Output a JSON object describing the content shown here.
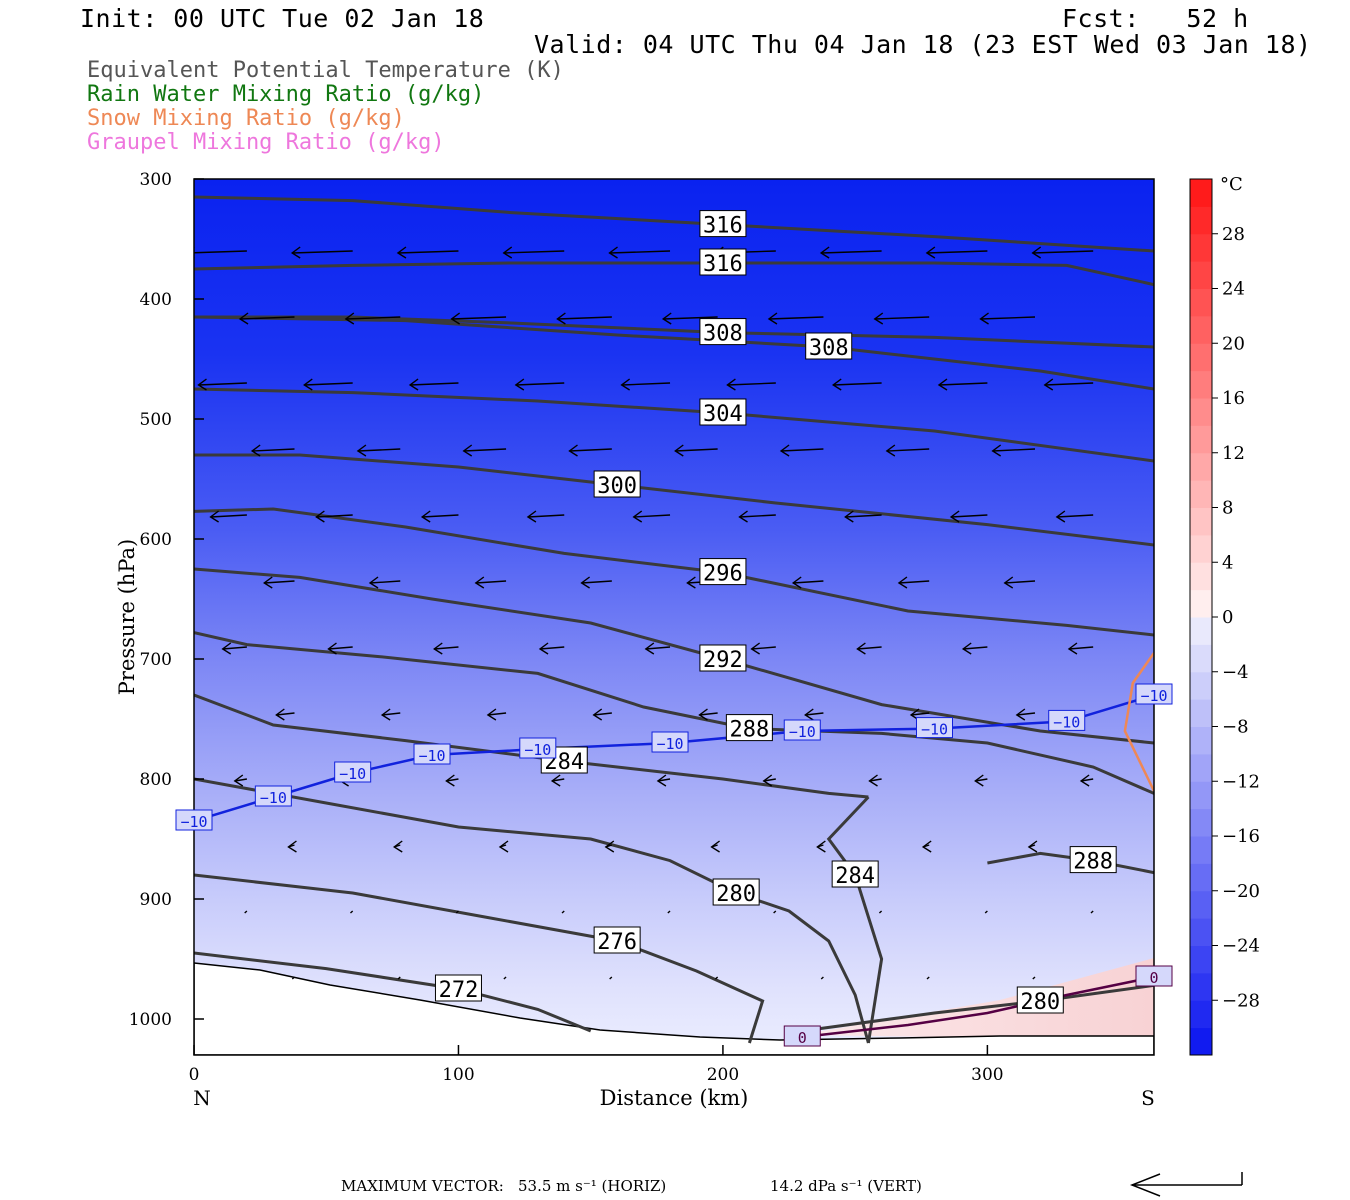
{
  "header": {
    "init": "Init: 00 UTC Tue 02 Jan 18",
    "fcst": "Fcst:   52 h",
    "valid": "Valid: 04 UTC Thu 04 Jan 18 (23 EST Wed 03 Jan 18)"
  },
  "legend": [
    {
      "label": "Equivalent Potential Temperature (K)",
      "color": "#555555"
    },
    {
      "label": "Rain Water Mixing Ratio (g/kg)",
      "color": "#117711"
    },
    {
      "label": "Snow Mixing Ratio (g/kg)",
      "color": "#ee8855"
    },
    {
      "label": "Graupel Mixing Ratio (g/kg)",
      "color": "#ee77dd"
    }
  ],
  "chart_data": {
    "type": "cross-section contour",
    "xlabel": "Distance (km)",
    "ylabel": "Pressure (hPa)",
    "xlim": [
      0,
      363
    ],
    "ylim": [
      1030,
      300
    ],
    "x_ticks": [
      0,
      100,
      200,
      300
    ],
    "y_ticks": [
      300,
      400,
      500,
      600,
      700,
      800,
      900,
      1000
    ],
    "x_end_labels": {
      "left": "N",
      "right": "S"
    },
    "colorbar": {
      "unit": "°C",
      "tick_labels": [
        "28",
        "24",
        "20",
        "16",
        "12",
        "8",
        "4",
        "0",
        "−4",
        "−8",
        "−12",
        "−16",
        "−20",
        "−24",
        "−28"
      ],
      "levels": [
        -32,
        -30,
        -28,
        -26,
        -24,
        -22,
        -20,
        -18,
        -16,
        -14,
        -12,
        -10,
        -8,
        -6,
        -4,
        -2,
        0,
        2,
        4,
        6,
        8,
        10,
        12,
        14,
        16,
        18,
        20,
        22,
        24,
        26,
        28,
        30,
        32
      ]
    },
    "theta_e_contours": [
      {
        "label": "316",
        "points": [
          [
            0,
            315
          ],
          [
            60,
            318
          ],
          [
            120,
            328
          ],
          [
            200,
            338
          ],
          [
            280,
            348
          ],
          [
            363,
            360
          ]
        ]
      },
      {
        "label": "316",
        "points": [
          [
            0,
            375
          ],
          [
            60,
            372
          ],
          [
            120,
            370
          ],
          [
            200,
            370
          ],
          [
            280,
            370
          ],
          [
            330,
            372
          ],
          [
            363,
            388
          ]
        ]
      },
      {
        "label": "308",
        "points": [
          [
            0,
            415
          ],
          [
            60,
            415
          ],
          [
            120,
            420
          ],
          [
            200,
            428
          ],
          [
            280,
            432
          ],
          [
            363,
            440
          ]
        ]
      },
      {
        "label": "308",
        "points": [
          [
            0,
            415
          ],
          [
            80,
            418
          ],
          [
            160,
            430
          ],
          [
            240,
            440
          ],
          [
            320,
            460
          ],
          [
            363,
            475
          ]
        ]
      },
      {
        "label": "304",
        "points": [
          [
            0,
            475
          ],
          [
            60,
            478
          ],
          [
            130,
            485
          ],
          [
            200,
            495
          ],
          [
            280,
            510
          ],
          [
            363,
            535
          ]
        ]
      },
      {
        "label": "300",
        "points": [
          [
            0,
            530
          ],
          [
            40,
            530
          ],
          [
            100,
            540
          ],
          [
            160,
            555
          ],
          [
            220,
            570
          ],
          [
            300,
            588
          ],
          [
            363,
            605
          ]
        ]
      },
      {
        "label": "296",
        "points": [
          [
            0,
            577
          ],
          [
            30,
            575
          ],
          [
            80,
            590
          ],
          [
            140,
            612
          ],
          [
            200,
            628
          ],
          [
            270,
            660
          ],
          [
            330,
            672
          ],
          [
            363,
            680
          ]
        ]
      },
      {
        "label": "292",
        "points": [
          [
            0,
            625
          ],
          [
            40,
            632
          ],
          [
            90,
            650
          ],
          [
            150,
            670
          ],
          [
            200,
            700
          ],
          [
            260,
            738
          ],
          [
            320,
            760
          ],
          [
            363,
            770
          ]
        ]
      },
      {
        "label": "288",
        "points": [
          [
            0,
            678
          ],
          [
            20,
            688
          ],
          [
            70,
            698
          ],
          [
            130,
            712
          ],
          [
            170,
            740
          ],
          [
            210,
            758
          ],
          [
            260,
            762
          ],
          [
            300,
            770
          ],
          [
            340,
            790
          ],
          [
            363,
            812
          ]
        ]
      },
      {
        "label": "284",
        "points": [
          [
            0,
            730
          ],
          [
            30,
            755
          ],
          [
            80,
            768
          ],
          [
            140,
            785
          ],
          [
            200,
            800
          ],
          [
            240,
            812
          ],
          [
            255,
            815
          ]
        ]
      },
      {
        "label": "280",
        "points": [
          [
            0,
            800
          ],
          [
            50,
            820
          ],
          [
            100,
            840
          ],
          [
            150,
            850
          ],
          [
            180,
            868
          ],
          [
            205,
            895
          ],
          [
            225,
            910
          ],
          [
            240,
            935
          ],
          [
            250,
            980
          ],
          [
            255,
            1020
          ]
        ]
      },
      {
        "label": "276",
        "points": [
          [
            0,
            880
          ],
          [
            60,
            895
          ],
          [
            110,
            915
          ],
          [
            160,
            935
          ],
          [
            190,
            960
          ],
          [
            215,
            985
          ],
          [
            210,
            1020
          ]
        ]
      },
      {
        "label": "272",
        "points": [
          [
            0,
            945
          ],
          [
            50,
            958
          ],
          [
            100,
            975
          ],
          [
            130,
            992
          ],
          [
            150,
            1010
          ]
        ]
      },
      {
        "label": "284",
        "points": [
          [
            255,
            815
          ],
          [
            240,
            850
          ],
          [
            250,
            880
          ],
          [
            260,
            950
          ],
          [
            255,
            1020
          ]
        ]
      },
      {
        "label": "288",
        "points": [
          [
            300,
            870
          ],
          [
            320,
            862
          ],
          [
            340,
            868
          ],
          [
            363,
            878
          ]
        ]
      },
      {
        "label": "280",
        "points": [
          [
            230,
            1010
          ],
          [
            280,
            995
          ],
          [
            320,
            985
          ],
          [
            363,
            972
          ]
        ]
      }
    ],
    "temperature_contours": [
      {
        "label": "−10",
        "points": [
          [
            0,
            835
          ],
          [
            30,
            815
          ],
          [
            60,
            795
          ],
          [
            90,
            780
          ],
          [
            130,
            775
          ],
          [
            180,
            770
          ],
          [
            230,
            760
          ],
          [
            280,
            758
          ],
          [
            330,
            752
          ],
          [
            363,
            730
          ]
        ]
      },
      {
        "label": "0",
        "points": [
          [
            230,
            1015
          ],
          [
            270,
            1005
          ],
          [
            300,
            995
          ],
          [
            330,
            980
          ],
          [
            363,
            965
          ]
        ]
      }
    ],
    "snow_contour": {
      "points": [
        [
          363,
          695
        ],
        [
          355,
          720
        ],
        [
          352,
          760
        ],
        [
          363,
          810
        ]
      ]
    }
  },
  "footer": {
    "max_vector": "MAXIMUM VECTOR:",
    "horiz": "53.5 m s⁻¹ (HORIZ)",
    "vert": "14.2 dPa s⁻¹ (VERT)"
  }
}
